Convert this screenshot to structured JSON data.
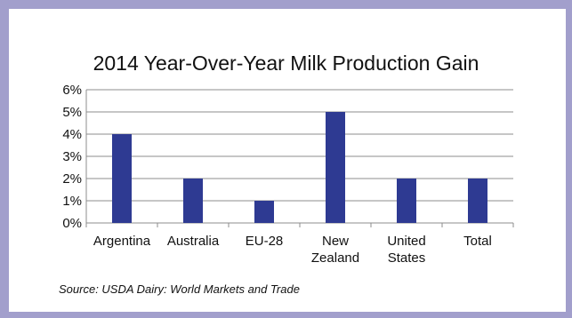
{
  "chart_data": {
    "type": "bar",
    "title": "2014 Year-Over-Year Milk Production Gain",
    "categories": [
      [
        "Argentina"
      ],
      [
        "Australia"
      ],
      [
        "EU-28"
      ],
      [
        "New",
        "Zealand"
      ],
      [
        "United",
        "States"
      ],
      [
        "Total"
      ]
    ],
    "values": [
      4,
      2,
      1,
      5,
      2,
      2
    ],
    "ylim": [
      0,
      6
    ],
    "yticks": [
      "0%",
      "1%",
      "2%",
      "3%",
      "4%",
      "5%",
      "6%"
    ],
    "grid": true,
    "bar_color": "#2e3a92"
  },
  "source": "Source: USDA Dairy: World Markets and Trade",
  "colors": {
    "frame": "#a29fcc",
    "grid": "#8c8c8c"
  }
}
